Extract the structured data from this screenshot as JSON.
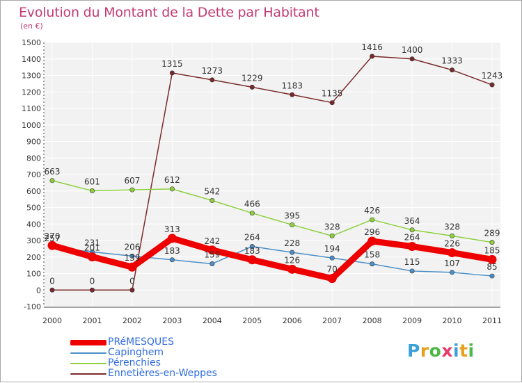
{
  "title": "Evolution du Montant de la Dette par Habitant",
  "subtitle": "(en €)",
  "logo": {
    "text": "Proxiti",
    "colors": [
      "#3aa0d8",
      "#e8a020",
      "#4cb848",
      "#e83a70",
      "#3aa0d8",
      "#e8a020",
      "#4cb848"
    ]
  },
  "chart_data": {
    "type": "line",
    "x": [
      "2000",
      "2001",
      "2002",
      "2003",
      "2004",
      "2005",
      "2006",
      "2007",
      "2008",
      "2009",
      "2010",
      "2011"
    ],
    "ylim": [
      -100,
      1500
    ],
    "yticks": [
      "-100",
      "0",
      "100",
      "200",
      "300",
      "400",
      "500",
      "600",
      "700",
      "800",
      "900",
      "1000",
      "1100",
      "1200",
      "1300",
      "1400",
      "1500"
    ],
    "grid": true,
    "legend_position": "bottom-left",
    "series": [
      {
        "name": "PRéMESQUES",
        "color": "#ee0000",
        "values": [
          270,
          201,
          139,
          313,
          242,
          183,
          126,
          70,
          296,
          264,
          226,
          185
        ],
        "labels": [
          "270",
          "201",
          "139",
          "313",
          "242",
          "183",
          "126",
          "70",
          "296",
          "264",
          "226",
          "185"
        ]
      },
      {
        "name": "Capinghem",
        "color": "#4a8fc8",
        "values": [
          257,
          231,
          206,
          183,
          159,
          264,
          228,
          194,
          158,
          115,
          107,
          85
        ],
        "labels": [
          "257",
          "231",
          "206",
          "183",
          "159",
          "264",
          "228",
          "194",
          "158",
          "115",
          "107",
          "85"
        ]
      },
      {
        "name": "Pérenchies",
        "color": "#8ed040",
        "values": [
          663,
          601,
          607,
          612,
          542,
          466,
          395,
          328,
          426,
          364,
          328,
          289
        ],
        "labels": [
          "663",
          "601",
          "607",
          "612",
          "542",
          "466",
          "395",
          "328",
          "426",
          "364",
          "328",
          "289"
        ]
      },
      {
        "name": "Ennetières-en-Weppes",
        "color": "#7a2a2a",
        "values": [
          0,
          0,
          0,
          1315,
          1273,
          1229,
          1183,
          1135,
          1416,
          1400,
          1333,
          1243
        ],
        "labels": [
          "0",
          "0",
          "0",
          "1315",
          "1273",
          "1229",
          "1183",
          "1135",
          "1416",
          "1400",
          "1333",
          "1243"
        ]
      }
    ]
  }
}
